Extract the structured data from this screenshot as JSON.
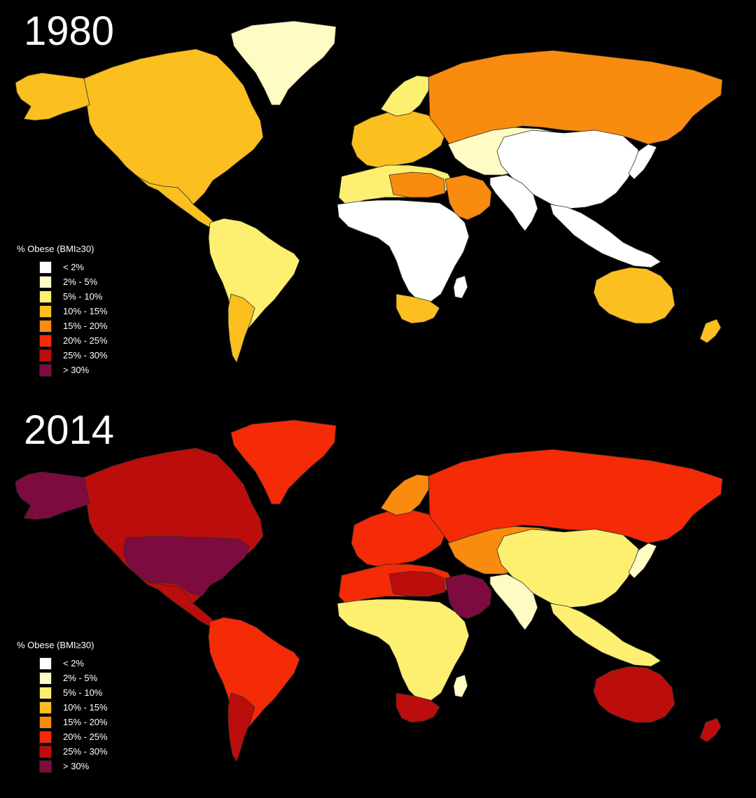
{
  "legend": {
    "title": "% Obese (BMI≥30)",
    "classes": [
      {
        "label": "< 2%",
        "color": "#ffffff"
      },
      {
        "label": "2% - 5%",
        "color": "#fefbc4"
      },
      {
        "label": "5% - 10%",
        "color": "#fdf071"
      },
      {
        "label": "10% - 15%",
        "color": "#fbbf1f"
      },
      {
        "label": "15% - 20%",
        "color": "#f98b0e"
      },
      {
        "label": "20% - 25%",
        "color": "#f52a07"
      },
      {
        "label": "25% - 30%",
        "color": "#bb0d0b"
      },
      {
        "label": "> 30%",
        "color": "#7d0b3f"
      }
    ]
  },
  "maps": [
    {
      "year": "1980",
      "regions": [
        {
          "name": "greenland",
          "cls": 1
        },
        {
          "name": "north-america",
          "cls": 3
        },
        {
          "name": "alaska",
          "cls": 3
        },
        {
          "name": "mexico",
          "cls": 3
        },
        {
          "name": "south-america",
          "cls": 2
        },
        {
          "name": "argentina",
          "cls": 3
        },
        {
          "name": "europe",
          "cls": 3
        },
        {
          "name": "scandinavia",
          "cls": 2
        },
        {
          "name": "russia",
          "cls": 4
        },
        {
          "name": "north-africa",
          "cls": 2
        },
        {
          "name": "libya-egypt",
          "cls": 4
        },
        {
          "name": "arabia",
          "cls": 4
        },
        {
          "name": "sub-saharan-africa",
          "cls": 0
        },
        {
          "name": "southern-africa",
          "cls": 3
        },
        {
          "name": "central-asia",
          "cls": 1
        },
        {
          "name": "china",
          "cls": 0
        },
        {
          "name": "india",
          "cls": 0
        },
        {
          "name": "southeast-asia",
          "cls": 0
        },
        {
          "name": "japan",
          "cls": 0
        },
        {
          "name": "australia",
          "cls": 3
        },
        {
          "name": "new-zealand",
          "cls": 3
        },
        {
          "name": "madagascar",
          "cls": 0
        }
      ]
    },
    {
      "year": "2014",
      "regions": [
        {
          "name": "greenland",
          "cls": 5
        },
        {
          "name": "north-america",
          "cls": 6
        },
        {
          "name": "alaska",
          "cls": 7
        },
        {
          "name": "usa",
          "cls": 7
        },
        {
          "name": "mexico",
          "cls": 6
        },
        {
          "name": "south-america",
          "cls": 5
        },
        {
          "name": "argentina",
          "cls": 6
        },
        {
          "name": "europe",
          "cls": 5
        },
        {
          "name": "scandinavia",
          "cls": 4
        },
        {
          "name": "russia",
          "cls": 5
        },
        {
          "name": "north-africa",
          "cls": 5
        },
        {
          "name": "libya-egypt",
          "cls": 6
        },
        {
          "name": "arabia",
          "cls": 7
        },
        {
          "name": "sub-saharan-africa",
          "cls": 2
        },
        {
          "name": "southern-africa",
          "cls": 6
        },
        {
          "name": "central-asia",
          "cls": 4
        },
        {
          "name": "china",
          "cls": 2
        },
        {
          "name": "india",
          "cls": 1
        },
        {
          "name": "southeast-asia",
          "cls": 2
        },
        {
          "name": "japan",
          "cls": 1
        },
        {
          "name": "australia",
          "cls": 6
        },
        {
          "name": "new-zealand",
          "cls": 6
        },
        {
          "name": "madagascar",
          "cls": 1
        }
      ]
    }
  ]
}
